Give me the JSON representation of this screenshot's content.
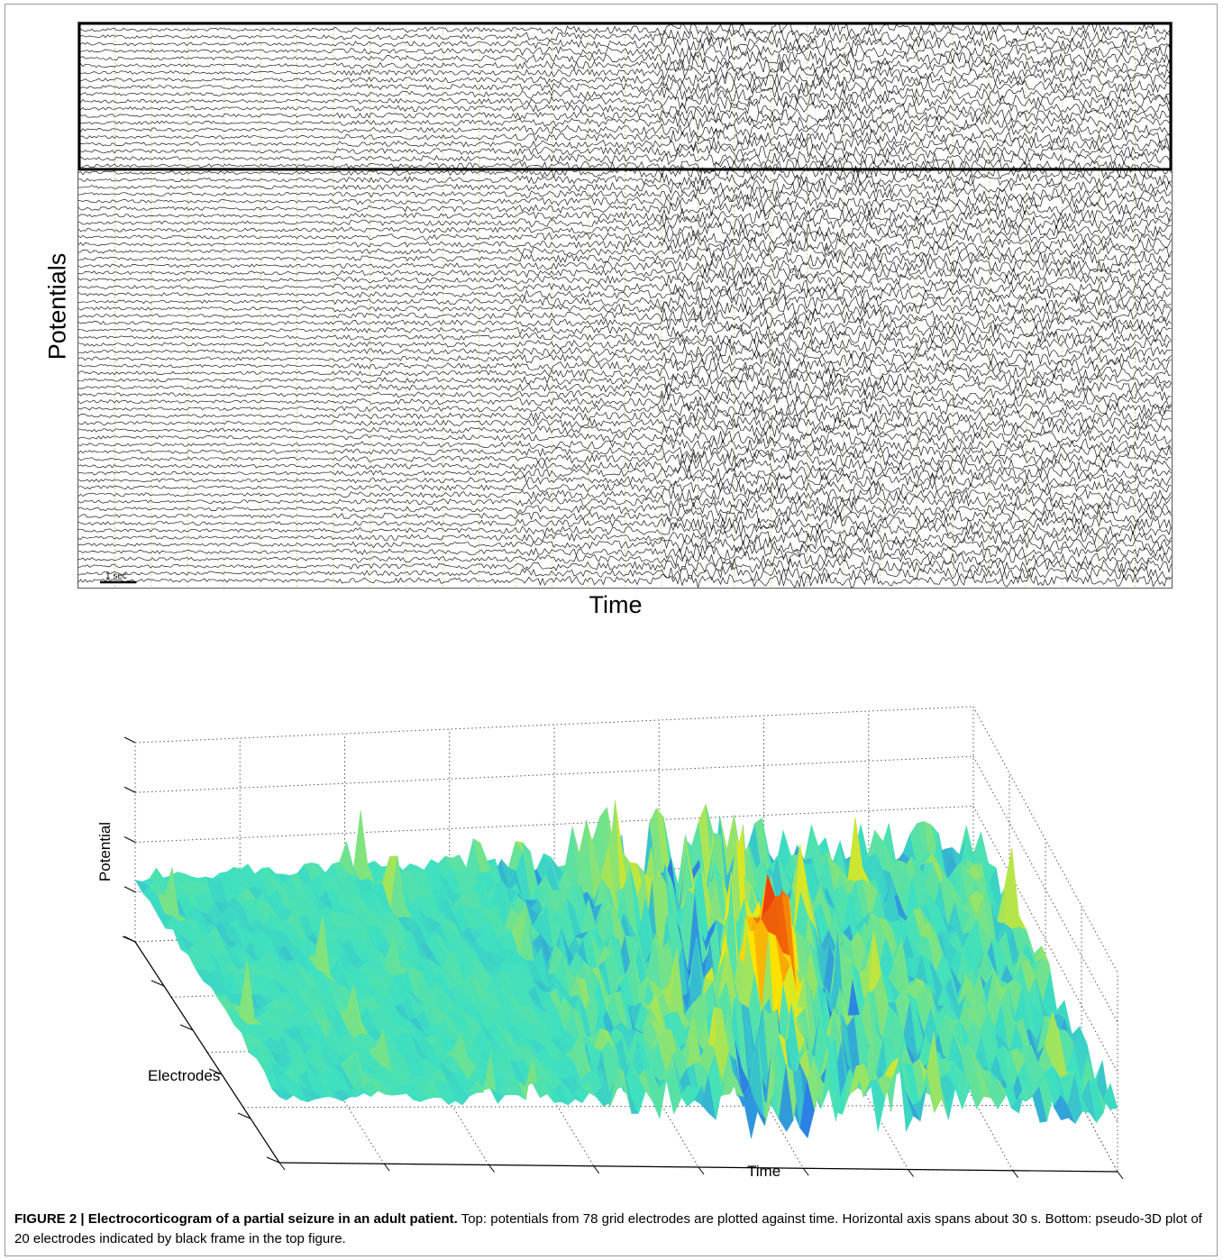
{
  "top_panel": {
    "ylabel": "Potentials",
    "xlabel": "Time",
    "scale_bar_label": "1 sec"
  },
  "bottom_panel": {
    "zlabel": "Potential",
    "ylabel": "Electrodes",
    "xlabel": "Time"
  },
  "caption": {
    "title": "FIGURE 2 | Electrocorticogram of a partial seizure in an adult patient.",
    "body": " Top: potentials from 78 grid electrodes are plotted against time. Horizontal axis spans about 30 s. Bottom: pseudo-3D plot of 20 electrodes indicated by black frame in the top figure."
  },
  "colors": {
    "trace": "#1a1a1a",
    "frame": "#000000",
    "time_marker": "#c8c870",
    "surface_low": "#1e3cff",
    "surface_mid": "#3ee0c0",
    "surface_high": "#ffe800",
    "surface_peak": "#e8200c"
  },
  "chart_data": [
    {
      "type": "line",
      "title": "",
      "xlabel": "Time",
      "ylabel": "Potentials",
      "channels": 78,
      "duration_s": 30,
      "highlighted_channels": 20,
      "grid": true
    },
    {
      "type": "area",
      "title": "",
      "xlabel": "Time",
      "ylabel": "Electrodes",
      "zlabel": "Potential",
      "electrodes": 20,
      "grid": true
    }
  ]
}
